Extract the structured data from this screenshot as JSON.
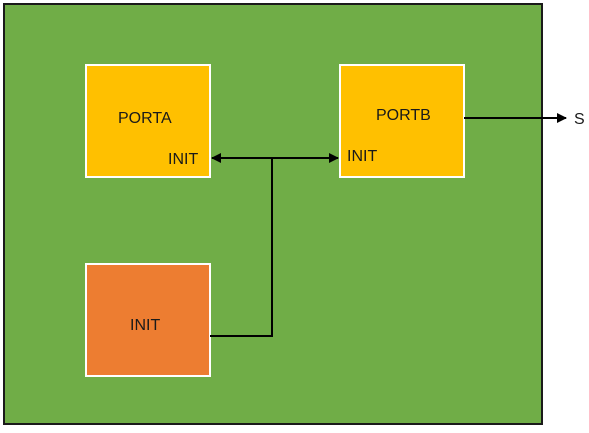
{
  "diagram": {
    "blocks": {
      "porta": {
        "title": "PORTA",
        "port": "INIT"
      },
      "portb": {
        "title": "PORTB",
        "port": "INIT"
      },
      "init": {
        "title": "INIT"
      }
    },
    "output_label": "S",
    "colors": {
      "background": "#70AD47",
      "border": "#1a1a1a",
      "port_block": "#FFC000",
      "init_block": "#ED7D31",
      "block_border": "#ffffff",
      "wire": "#000000"
    }
  }
}
